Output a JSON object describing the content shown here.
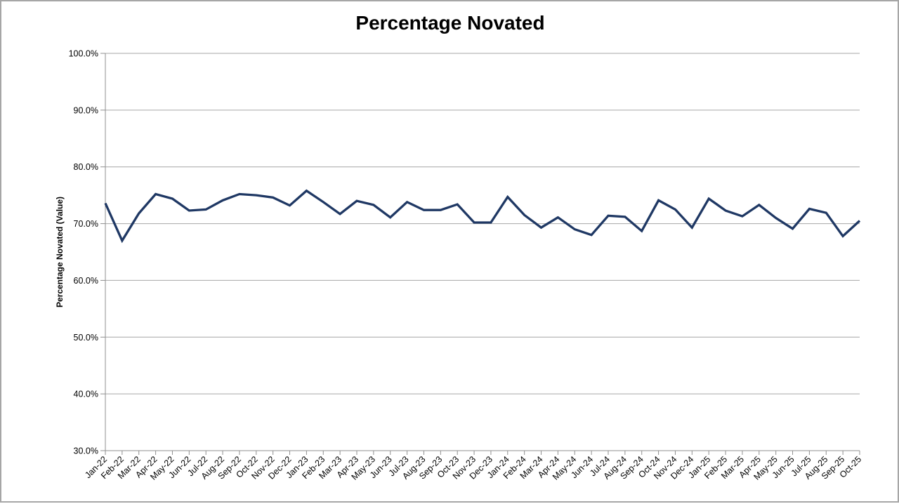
{
  "chart_data": {
    "type": "line",
    "title": "Percentage Novated",
    "xlabel": "",
    "ylabel": "Percentage Novated (Value)",
    "ylim": [
      30,
      100
    ],
    "ytick_step": 10,
    "ytick_suffix": "%",
    "ytick_decimals": 1,
    "grid": "horizontal",
    "legend": "none",
    "line_color": "#1F3864",
    "grid_color": "#A6A6A6",
    "axis_color": "#8F8F8F",
    "categories": [
      "Jan-22",
      "Feb-22",
      "Mar-22",
      "Apr-22",
      "May-22",
      "Jun-22",
      "Jul-22",
      "Aug-22",
      "Sep-22",
      "Oct-22",
      "Nov-22",
      "Dec-22",
      "Jan-23",
      "Feb-23",
      "Mar-23",
      "Apr-23",
      "May-23",
      "Jun-23",
      "Jul-23",
      "Aug-23",
      "Sep-23",
      "Oct-23",
      "Nov-23",
      "Dec-23",
      "Jan-24",
      "Feb-24",
      "Mar-24",
      "Apr-24",
      "May-24",
      "Jun-24",
      "Jul-24",
      "Aug-24",
      "Sep-24",
      "Oct-24",
      "Nov-24",
      "Dec-24",
      "Jan-25",
      "Feb-25",
      "Mar-25",
      "Apr-25",
      "May-25",
      "Jun-25",
      "Jul-25",
      "Aug-25",
      "Sep-25",
      "Oct-25"
    ],
    "values": [
      73.6,
      67.0,
      71.8,
      75.2,
      74.4,
      72.3,
      72.5,
      74.1,
      75.2,
      75.0,
      74.6,
      73.2,
      75.8,
      73.8,
      71.7,
      74.0,
      73.3,
      71.1,
      73.8,
      72.4,
      72.4,
      73.4,
      70.2,
      70.2,
      74.7,
      71.5,
      69.3,
      71.1,
      69.0,
      68.0,
      71.4,
      71.2,
      68.7,
      74.1,
      72.5,
      69.3,
      74.4,
      72.3,
      71.3,
      73.3,
      71.0,
      69.1,
      72.6,
      71.9,
      67.8,
      70.5
    ]
  }
}
